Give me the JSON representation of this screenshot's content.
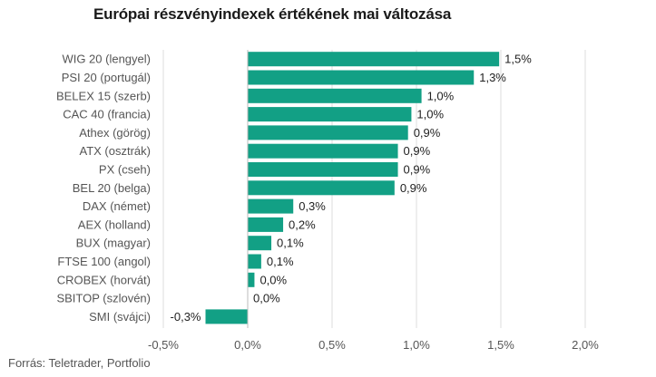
{
  "chart_data": {
    "type": "bar",
    "orientation": "horizontal",
    "title": "Európai részvényindexek értékének mai változása",
    "categories": [
      "WIG 20 (lengyel)",
      "PSI 20 (portugál)",
      "BELEX 15 (szerb)",
      "CAC 40 (francia)",
      "Athex (görög)",
      "ATX (osztrák)",
      "PX (cseh)",
      "BEL 20 (belga)",
      "DAX (német)",
      "AEX (holland)",
      "BUX (magyar)",
      "FTSE 100 (angol)",
      "CROBEX (horvát)",
      "SBITOP (szlovén)",
      "SMI (svájci)"
    ],
    "values": [
      1.49,
      1.34,
      1.03,
      0.97,
      0.95,
      0.89,
      0.89,
      0.87,
      0.27,
      0.21,
      0.14,
      0.08,
      0.04,
      0.0,
      -0.25
    ],
    "data_labels": [
      "1,5%",
      "1,3%",
      "1,0%",
      "1,0%",
      "0,9%",
      "0,9%",
      "0,9%",
      "0,9%",
      "0,3%",
      "0,2%",
      "0,1%",
      "0,1%",
      "0,0%",
      "0,0%",
      "-0,3%"
    ],
    "xlim": [
      -0.5,
      2.0
    ],
    "xticks": [
      -0.5,
      0.0,
      0.5,
      1.0,
      1.5,
      2.0
    ],
    "xtick_labels": [
      "-0,5%",
      "0,0%",
      "0,5%",
      "1,0%",
      "1,5%",
      "2,0%"
    ],
    "grid": "vertical",
    "bar_color": "#12a085"
  },
  "source": "Forrás: Teletrader, Portfolio"
}
